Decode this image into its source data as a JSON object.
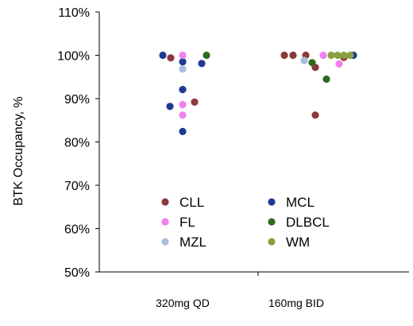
{
  "chart_data": {
    "type": "scatter",
    "title": "",
    "ylabel": "BTK Occupancy, %",
    "xlabel": "",
    "ylim": [
      50,
      110
    ],
    "yticks": [
      "50%",
      "60%",
      "70%",
      "80%",
      "90%",
      "100%",
      "110%"
    ],
    "ytick_values": [
      50,
      60,
      70,
      80,
      90,
      100,
      110
    ],
    "categories": [
      "320mg QD",
      "160mg BID"
    ],
    "grid": false,
    "legend_position": "inside-bottom",
    "series": [
      {
        "name": "CLL",
        "color": "#8b3a3a",
        "points": [
          {
            "group": "320mg QD",
            "offset": -0.15,
            "y": 99.4
          },
          {
            "group": "320mg QD",
            "offset": 0.15,
            "y": 89.2
          },
          {
            "group": "160mg BID",
            "offset": -0.15,
            "y": 100.0
          },
          {
            "group": "160mg BID",
            "offset": -0.04,
            "y": 100.0
          },
          {
            "group": "160mg BID",
            "offset": 0.12,
            "y": 100.0
          },
          {
            "group": "160mg BID",
            "offset": 0.24,
            "y": 97.2
          },
          {
            "group": "160mg BID",
            "offset": 0.24,
            "y": 86.2
          },
          {
            "group": "160mg BID",
            "offset": 0.6,
            "y": 99.5
          }
        ]
      },
      {
        "name": "MCL",
        "color": "#1f3a93",
        "points": [
          {
            "group": "320mg QD",
            "offset": -0.25,
            "y": 100.0
          },
          {
            "group": "320mg QD",
            "offset": -0.16,
            "y": 88.2
          },
          {
            "group": "320mg QD",
            "offset": 0.0,
            "y": 98.5
          },
          {
            "group": "320mg QD",
            "offset": 0.0,
            "y": 92.1
          },
          {
            "group": "320mg QD",
            "offset": 0.0,
            "y": 82.4
          },
          {
            "group": "320mg QD",
            "offset": 0.24,
            "y": 98.1
          },
          {
            "group": "160mg BID",
            "offset": 0.72,
            "y": 100.0
          }
        ]
      },
      {
        "name": "FL",
        "color": "#ee82ee",
        "points": [
          {
            "group": "320mg QD",
            "offset": 0.0,
            "y": 100.0
          },
          {
            "group": "320mg QD",
            "offset": 0.0,
            "y": 88.6
          },
          {
            "group": "320mg QD",
            "offset": 0.0,
            "y": 86.2
          },
          {
            "group": "160mg BID",
            "offset": 0.34,
            "y": 100.0
          },
          {
            "group": "160mg BID",
            "offset": 0.54,
            "y": 98.0
          }
        ]
      },
      {
        "name": "DLBCL",
        "color": "#2e6b1f",
        "points": [
          {
            "group": "320mg QD",
            "offset": 0.3,
            "y": 100.0
          },
          {
            "group": "160mg BID",
            "offset": 0.2,
            "y": 98.3
          },
          {
            "group": "160mg BID",
            "offset": 0.38,
            "y": 94.5
          }
        ]
      },
      {
        "name": "MZL",
        "color": "#a6bddb",
        "points": [
          {
            "group": "320mg QD",
            "offset": 0.0,
            "y": 96.8
          },
          {
            "group": "160mg BID",
            "offset": 0.1,
            "y": 98.8
          }
        ]
      },
      {
        "name": "WM",
        "color": "#8aa040",
        "points": [
          {
            "group": "160mg BID",
            "offset": 0.44,
            "y": 100.0
          },
          {
            "group": "160mg BID",
            "offset": 0.52,
            "y": 100.0
          },
          {
            "group": "160mg BID",
            "offset": 0.6,
            "y": 100.0
          },
          {
            "group": "160mg BID",
            "offset": 0.68,
            "y": 100.0
          }
        ]
      }
    ]
  }
}
